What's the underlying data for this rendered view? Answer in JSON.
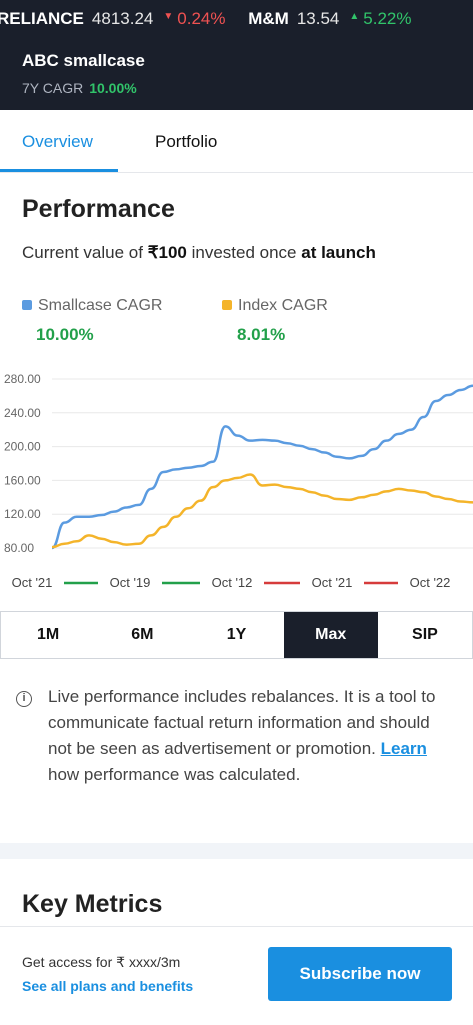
{
  "ticker": [
    {
      "name": "RELIANCE",
      "value": "4813.24",
      "change": "0.24%",
      "direction": "down",
      "arrow": "▼"
    },
    {
      "name": "M&M",
      "value": "13.54",
      "change": "5.22%",
      "direction": "up",
      "arrow": "▲"
    }
  ],
  "smallcase": {
    "name": "ABC smallcase",
    "cagr_label": "7Y CAGR",
    "cagr_value": "10.00%"
  },
  "tabs": {
    "overview": "Overview",
    "portfolio": "Portfolio"
  },
  "performance": {
    "title": "Performance",
    "subtitle_prefix": "Current value of ",
    "subtitle_amount": "₹100",
    "subtitle_middle": " invested once ",
    "subtitle_bold": "at launch"
  },
  "legend": [
    {
      "label": "Smallcase CAGR",
      "value": "10.00%",
      "color": "#5b9be0"
    },
    {
      "label": "Index CAGR",
      "value": "8.01%",
      "color": "#f4b42a"
    }
  ],
  "chart_data": {
    "type": "line",
    "ylim": [
      80,
      280
    ],
    "yticks": [
      "280.00",
      "240.00",
      "200.00",
      "160.00",
      "120.00",
      "80.00"
    ],
    "yticks_values": [
      280,
      240,
      200,
      160,
      120,
      80
    ],
    "x_labels": [
      "Oct '21",
      "Oct '19",
      "Oct '12",
      "Oct '21",
      "Oct '22"
    ],
    "x_label_line_colors": [
      "#22a04a",
      "#22a04a",
      "#d63b3b",
      "#d63b3b"
    ],
    "series": [
      {
        "name": "Smallcase CAGR",
        "color": "#5b9be0",
        "values": [
          80,
          110,
          117,
          117,
          119,
          123,
          128,
          131,
          150,
          170,
          173,
          175,
          177,
          182,
          224,
          213,
          207,
          208,
          207,
          204,
          201,
          197,
          193,
          188,
          186,
          189,
          197,
          207,
          215,
          220,
          235,
          254,
          261,
          267,
          272
        ]
      },
      {
        "name": "Index CAGR",
        "color": "#f4b42a",
        "values": [
          81,
          85,
          88,
          95,
          91,
          87,
          84,
          85,
          95,
          105,
          117,
          127,
          136,
          152,
          160,
          163,
          167,
          154,
          155,
          152,
          150,
          146,
          142,
          138,
          137,
          140,
          143,
          147,
          150,
          148,
          146,
          141,
          138,
          135,
          134
        ]
      }
    ]
  },
  "periods": [
    {
      "label": "1M",
      "active": false
    },
    {
      "label": "6M",
      "active": false
    },
    {
      "label": "1Y",
      "active": false
    },
    {
      "label": "Max",
      "active": true
    },
    {
      "label": "SIP",
      "active": false
    }
  ],
  "info": {
    "text_before": "Live performance includes rebalances. It is a tool to communicate factual return information and should not be seen as advertisement or promotion. ",
    "link": "Learn",
    "text_after": " how performance was calculated."
  },
  "key_metrics_title": "Key Metrics",
  "footer": {
    "access": "Get access for ₹ xxxx/3m",
    "plans": "See all plans and benefits",
    "subscribe": "Subscribe now"
  },
  "icons": {
    "info": "info-circle-icon"
  }
}
